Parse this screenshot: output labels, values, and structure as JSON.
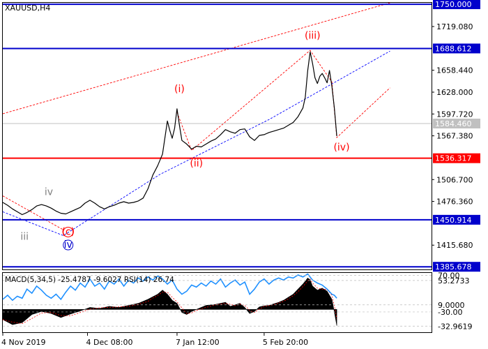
{
  "chart_data": {
    "type": "line",
    "symbol_label": "XAUUSD,H4",
    "price_axis": {
      "range": [
        1382,
        1752
      ],
      "ticks": [
        "1750.000",
        "1719.080",
        "1688.612",
        "1658.440",
        "1628.000",
        "1597.720",
        "1584.460",
        "1567.380",
        "1536.317",
        "1506.700",
        "1476.360",
        "1450.914",
        "1415.680",
        "1385.678"
      ]
    },
    "levels": [
      {
        "label": "1750.000",
        "value": 1750.0,
        "color": "#0000cc"
      },
      {
        "label": "1688.612",
        "value": 1688.612,
        "color": "#0000cc"
      },
      {
        "label": "1536.317",
        "value": 1536.317,
        "color": "#ff0000"
      },
      {
        "label": "1450.914",
        "value": 1450.914,
        "color": "#0000cc"
      },
      {
        "label": "1385.678",
        "value": 1385.678,
        "color": "#0000cc"
      }
    ],
    "current_price": {
      "label": "1584.460",
      "value": 1584.46
    },
    "x_axis": {
      "range": [
        0,
        140
      ],
      "ticks": [
        {
          "x": 0,
          "label": "4 Nov 2019"
        },
        {
          "x": 35,
          "label": "4 Dec 08:00"
        },
        {
          "x": 72,
          "label": "7 Jan 12:00"
        },
        {
          "x": 108,
          "label": "5 Feb 20:00"
        }
      ]
    },
    "price_series": [
      [
        0,
        1475
      ],
      [
        2,
        1471
      ],
      [
        4,
        1466
      ],
      [
        6,
        1462
      ],
      [
        8,
        1458
      ],
      [
        10,
        1461
      ],
      [
        12,
        1465
      ],
      [
        14,
        1470
      ],
      [
        16,
        1472
      ],
      [
        18,
        1470
      ],
      [
        20,
        1467
      ],
      [
        22,
        1463
      ],
      [
        24,
        1460
      ],
      [
        26,
        1459
      ],
      [
        28,
        1462
      ],
      [
        30,
        1465
      ],
      [
        32,
        1468
      ],
      [
        34,
        1474
      ],
      [
        36,
        1478
      ],
      [
        38,
        1474
      ],
      [
        40,
        1469
      ],
      [
        42,
        1466
      ],
      [
        44,
        1469
      ],
      [
        46,
        1471
      ],
      [
        48,
        1474
      ],
      [
        50,
        1476
      ],
      [
        52,
        1474
      ],
      [
        54,
        1475
      ],
      [
        56,
        1477
      ],
      [
        58,
        1481
      ],
      [
        60,
        1494
      ],
      [
        62,
        1513
      ],
      [
        64,
        1526
      ],
      [
        66,
        1542
      ],
      [
        67,
        1565
      ],
      [
        68,
        1588
      ],
      [
        69,
        1575
      ],
      [
        70,
        1564
      ],
      [
        71,
        1578
      ],
      [
        72,
        1605
      ],
      [
        73,
        1582
      ],
      [
        74,
        1561
      ],
      [
        76,
        1556
      ],
      [
        78,
        1549
      ],
      [
        80,
        1553
      ],
      [
        82,
        1552
      ],
      [
        84,
        1556
      ],
      [
        86,
        1560
      ],
      [
        88,
        1563
      ],
      [
        90,
        1569
      ],
      [
        92,
        1576
      ],
      [
        94,
        1573
      ],
      [
        96,
        1571
      ],
      [
        98,
        1576
      ],
      [
        100,
        1577
      ],
      [
        102,
        1566
      ],
      [
        104,
        1561
      ],
      [
        106,
        1568
      ],
      [
        108,
        1569
      ],
      [
        110,
        1572
      ],
      [
        112,
        1574
      ],
      [
        114,
        1576
      ],
      [
        116,
        1578
      ],
      [
        118,
        1582
      ],
      [
        120,
        1586
      ],
      [
        122,
        1594
      ],
      [
        124,
        1606
      ],
      [
        125,
        1621
      ],
      [
        126,
        1658
      ],
      [
        127,
        1684
      ],
      [
        128,
        1668
      ],
      [
        129,
        1648
      ],
      [
        130,
        1640
      ],
      [
        131,
        1650
      ],
      [
        132,
        1654
      ],
      [
        133,
        1648
      ],
      [
        134,
        1641
      ],
      [
        135,
        1658
      ],
      [
        136,
        1636
      ],
      [
        137,
        1606
      ],
      [
        138,
        1567
      ]
    ],
    "trend_lines": [
      {
        "style": "dotted-red",
        "points": [
          [
            0,
            1598
          ],
          [
            160,
            1760
          ]
        ]
      },
      {
        "style": "dotted-blue",
        "points": [
          [
            0,
            1462
          ],
          [
            25,
            1429
          ],
          [
            65,
            1514
          ],
          [
            110,
            1590
          ],
          [
            160,
            1685
          ]
        ]
      },
      {
        "style": "dotted-red",
        "points": [
          [
            0,
            1484
          ],
          [
            25,
            1437
          ]
        ]
      },
      {
        "style": "dotted-red",
        "points": [
          [
            72,
            1600
          ],
          [
            78,
            1547
          ],
          [
            127,
            1686
          ],
          [
            136,
            1642
          ],
          [
            138,
            1565
          ],
          [
            160,
            1634
          ]
        ]
      }
    ],
    "wave_labels": [
      {
        "text": "iv",
        "x": 19,
        "y": 1485,
        "color": "#808080",
        "circle": false
      },
      {
        "text": "iii",
        "x": 9,
        "y": 1423,
        "color": "#808080",
        "circle": false
      },
      {
        "text": "(c)",
        "x": 27,
        "y": 1430,
        "color": "#ff0000",
        "circle": true,
        "circle_color": "#ff0000"
      },
      {
        "text": "iv",
        "x": 27,
        "y": 1412,
        "color": "#0000cc",
        "circle": true,
        "circle_color": "#0000cc"
      },
      {
        "text": "(i)",
        "x": 73,
        "y": 1628,
        "color": "#ff0000",
        "circle": false
      },
      {
        "text": "(ii)",
        "x": 80,
        "y": 1525,
        "color": "#ff0000",
        "circle": false
      },
      {
        "text": "(iii)",
        "x": 128,
        "y": 1702,
        "color": "#ff0000",
        "circle": false
      },
      {
        "text": "(iv)",
        "x": 140,
        "y": 1547,
        "color": "#ff0000",
        "circle": false
      }
    ],
    "indicator": {
      "label": "MACD(5,34,5) -25.4787 -9.6027 RSI(14) 26.74",
      "range": [
        -45,
        72
      ],
      "ticks": [
        "53.2733",
        "70.00",
        "9.0000",
        "-30.00",
        "-32.9619"
      ],
      "tick_values": [
        57,
        67,
        9,
        -5,
        -32.9619
      ],
      "macd_series": [
        [
          0,
          -20
        ],
        [
          4,
          -30
        ],
        [
          8,
          -26
        ],
        [
          12,
          -10
        ],
        [
          16,
          -4
        ],
        [
          20,
          -8
        ],
        [
          24,
          -16
        ],
        [
          28,
          -9
        ],
        [
          32,
          -3
        ],
        [
          36,
          4
        ],
        [
          40,
          2
        ],
        [
          44,
          6
        ],
        [
          48,
          4
        ],
        [
          52,
          8
        ],
        [
          56,
          12
        ],
        [
          60,
          20
        ],
        [
          62,
          25
        ],
        [
          64,
          30
        ],
        [
          66,
          38
        ],
        [
          68,
          30
        ],
        [
          70,
          18
        ],
        [
          72,
          12
        ],
        [
          74,
          -6
        ],
        [
          76,
          -10
        ],
        [
          78,
          -4
        ],
        [
          80,
          0
        ],
        [
          84,
          8
        ],
        [
          88,
          10
        ],
        [
          92,
          14
        ],
        [
          94,
          6
        ],
        [
          96,
          9
        ],
        [
          98,
          12
        ],
        [
          100,
          4
        ],
        [
          102,
          -8
        ],
        [
          104,
          -4
        ],
        [
          106,
          5
        ],
        [
          108,
          7
        ],
        [
          110,
          8
        ],
        [
          112,
          11
        ],
        [
          114,
          14
        ],
        [
          116,
          18
        ],
        [
          118,
          24
        ],
        [
          120,
          30
        ],
        [
          122,
          40
        ],
        [
          124,
          50
        ],
        [
          126,
          62
        ],
        [
          127,
          58
        ],
        [
          128,
          46
        ],
        [
          130,
          38
        ],
        [
          132,
          42
        ],
        [
          134,
          36
        ],
        [
          136,
          20
        ],
        [
          137,
          -5
        ],
        [
          138,
          -32
        ]
      ],
      "rsi_series": [
        [
          0,
          20
        ],
        [
          2,
          28
        ],
        [
          4,
          18
        ],
        [
          6,
          26
        ],
        [
          8,
          22
        ],
        [
          10,
          40
        ],
        [
          12,
          32
        ],
        [
          14,
          46
        ],
        [
          16,
          38
        ],
        [
          18,
          28
        ],
        [
          20,
          22
        ],
        [
          22,
          30
        ],
        [
          24,
          20
        ],
        [
          26,
          34
        ],
        [
          28,
          46
        ],
        [
          30,
          38
        ],
        [
          32,
          52
        ],
        [
          34,
          44
        ],
        [
          36,
          60
        ],
        [
          38,
          46
        ],
        [
          40,
          52
        ],
        [
          42,
          40
        ],
        [
          44,
          56
        ],
        [
          46,
          50
        ],
        [
          48,
          60
        ],
        [
          50,
          46
        ],
        [
          52,
          58
        ],
        [
          54,
          52
        ],
        [
          56,
          62
        ],
        [
          58,
          56
        ],
        [
          60,
          64
        ],
        [
          62,
          58
        ],
        [
          64,
          66
        ],
        [
          66,
          60
        ],
        [
          68,
          50
        ],
        [
          70,
          58
        ],
        [
          72,
          40
        ],
        [
          74,
          30
        ],
        [
          76,
          36
        ],
        [
          78,
          48
        ],
        [
          80,
          44
        ],
        [
          82,
          52
        ],
        [
          84,
          46
        ],
        [
          86,
          56
        ],
        [
          88,
          50
        ],
        [
          90,
          60
        ],
        [
          92,
          44
        ],
        [
          94,
          52
        ],
        [
          96,
          58
        ],
        [
          98,
          48
        ],
        [
          100,
          54
        ],
        [
          102,
          30
        ],
        [
          104,
          40
        ],
        [
          106,
          54
        ],
        [
          108,
          60
        ],
        [
          110,
          50
        ],
        [
          112,
          58
        ],
        [
          114,
          62
        ],
        [
          116,
          58
        ],
        [
          118,
          64
        ],
        [
          120,
          62
        ],
        [
          122,
          68
        ],
        [
          124,
          64
        ],
        [
          126,
          70
        ],
        [
          128,
          58
        ],
        [
          130,
          52
        ],
        [
          132,
          48
        ],
        [
          134,
          40
        ],
        [
          136,
          30
        ],
        [
          137,
          28
        ],
        [
          138,
          22
        ]
      ]
    }
  }
}
